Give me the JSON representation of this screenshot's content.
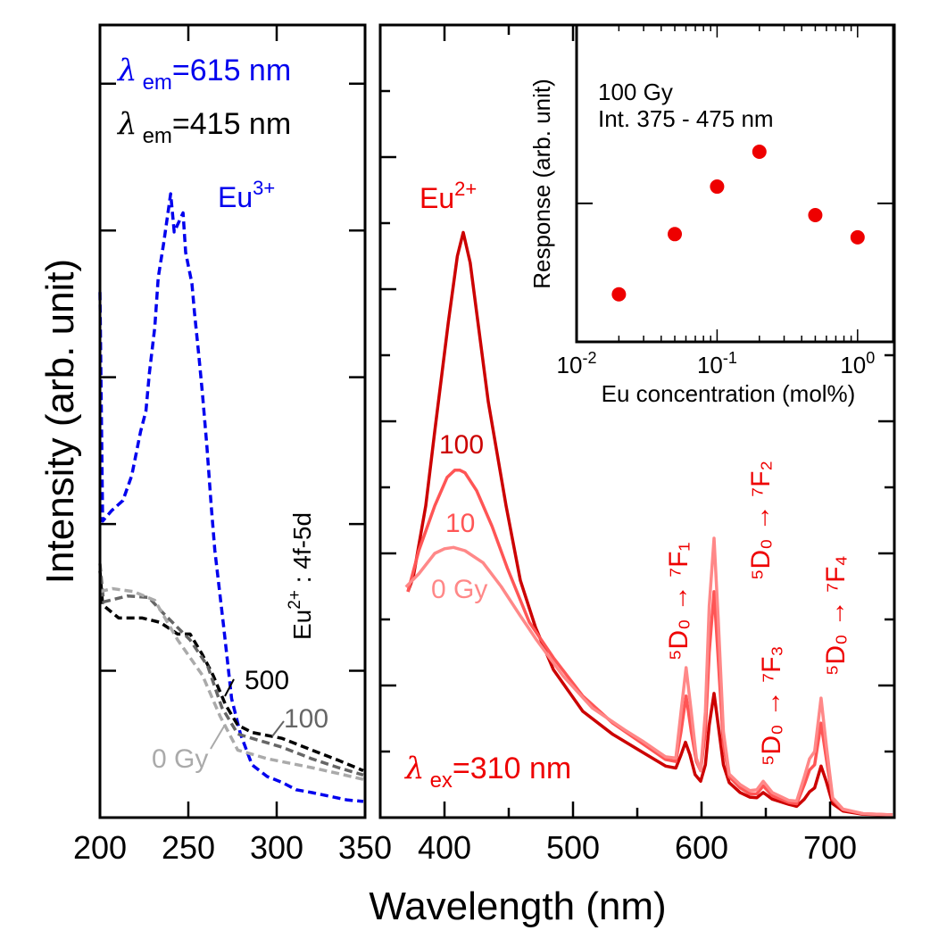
{
  "chart_data": [
    {
      "panel": "left",
      "type": "line",
      "title": "",
      "xlabel": "",
      "ylabel": "Intensity (arb. unit)",
      "xlim": [
        200,
        350
      ],
      "ylim": [
        0,
        5.4
      ],
      "x_ticks": [
        200,
        250,
        300,
        350
      ],
      "y_ticks": [
        1,
        2,
        3,
        4,
        5
      ],
      "y_tick_labels_visible": false,
      "grid": false,
      "annotations": {
        "em615": {
          "prefix": "λ",
          "sub": "em",
          "rest": "=615 nm",
          "color": "#0000ee"
        },
        "em415": {
          "prefix": "λ",
          "sub": "em",
          "rest": "=415 nm",
          "color": "#000000"
        },
        "eu3": {
          "base": "Eu",
          "sup": "3+",
          "color": "#0000ee"
        },
        "eu2_transition": {
          "base": "Eu",
          "sup": "2+",
          "rest": " : 4f-5d",
          "color": "#000000"
        },
        "label_500": {
          "text": "500",
          "color": "#000000"
        },
        "label_100": {
          "text": "100",
          "color": "#666666"
        },
        "label_0gy": {
          "text": "0 Gy",
          "color": "#aaaaaa"
        }
      },
      "series": [
        {
          "name": "Eu3+ excitation (λem=615 nm)",
          "color": "#0000ee",
          "dash": true,
          "x": [
            200,
            201.5,
            206.5,
            213,
            218,
            223,
            226,
            228,
            231,
            233,
            236,
            240,
            242,
            247,
            248.5,
            252,
            253.5,
            256,
            258,
            260.5,
            263,
            265,
            270,
            274.5,
            279.5,
            286,
            294.6,
            303,
            311,
            320,
            328,
            340,
            349
          ],
          "y": [
            3.58,
            2.02,
            2.09,
            2.16,
            2.33,
            2.63,
            2.77,
            3.03,
            3.34,
            3.68,
            3.91,
            4.25,
            3.99,
            4.12,
            3.85,
            3.64,
            3.44,
            3.14,
            2.89,
            2.53,
            2.12,
            1.82,
            1.3,
            0.81,
            0.57,
            0.36,
            0.28,
            0.24,
            0.19,
            0.17,
            0.15,
            0.12,
            0.11
          ]
        },
        {
          "name": "500 Gy (λem=415 nm)",
          "color": "#000000",
          "dash": true,
          "x": [
            200,
            201.5,
            210.6,
            224,
            234,
            244,
            251,
            258,
            264,
            271,
            278,
            286,
            303,
            320,
            335,
            349
          ],
          "y": [
            1.68,
            1.45,
            1.36,
            1.36,
            1.33,
            1.25,
            1.25,
            1.11,
            0.97,
            0.77,
            0.63,
            0.58,
            0.54,
            0.46,
            0.39,
            0.32
          ]
        },
        {
          "name": "100 Gy (λem=415 nm)",
          "color": "#666666",
          "dash": true,
          "x": [
            200,
            202,
            215.6,
            227.6,
            236,
            251,
            261,
            269,
            278,
            286,
            303,
            320,
            335,
            349
          ],
          "y": [
            1.73,
            1.47,
            1.51,
            1.5,
            1.39,
            1.21,
            1.03,
            0.75,
            0.57,
            0.54,
            0.48,
            0.4,
            0.34,
            0.29
          ]
        },
        {
          "name": "0 Gy (λem=415 nm)",
          "color": "#aaaaaa",
          "dash": true,
          "x": [
            200,
            207,
            219,
            231,
            244,
            258,
            268,
            278,
            295,
            320,
            335,
            349
          ],
          "y": [
            1.54,
            1.56,
            1.54,
            1.48,
            1.21,
            0.97,
            0.69,
            0.46,
            0.4,
            0.34,
            0.3,
            0.26
          ]
        }
      ]
    },
    {
      "panel": "right",
      "type": "line",
      "title": "",
      "xlabel": "Wavelength (nm)",
      "ylabel": "",
      "xlim": [
        350,
        750
      ],
      "ylim": [
        0,
        12
      ],
      "x_ticks": [
        400,
        500,
        600,
        700
      ],
      "x_minor_ticks": [
        450,
        550,
        650
      ],
      "y_ticks": [
        1,
        2,
        3,
        4,
        5,
        6,
        7,
        8,
        9,
        10,
        11
      ],
      "y_tick_labels_visible": false,
      "grid": false,
      "annotations": {
        "eu2": {
          "base": "Eu",
          "sup": "2+",
          "color": "#ee0000"
        },
        "label_100": {
          "text": "100",
          "color": "#cc0000"
        },
        "label_10": {
          "text": "10",
          "color": "#ff5555"
        },
        "label_0gy": {
          "text": "0 Gy",
          "color": "#ff8888"
        },
        "ex310": {
          "prefix": "λ",
          "sub": "ex",
          "rest": "=310 nm",
          "color": "#ee0000"
        },
        "transitions": [
          {
            "name": "5D0-7F1",
            "text": "⁵D₀ → ⁷F₁",
            "color": "#ee0000"
          },
          {
            "name": "5D0-7F2",
            "text": "⁵D₀ → ⁷F₂",
            "color": "#ee0000"
          },
          {
            "name": "5D0-7F3",
            "text": "⁵D₀ → ⁷F₃",
            "color": "#ee0000"
          },
          {
            "name": "5D0-7F4",
            "text": "⁵D₀ → ⁷F₄",
            "color": "#ee0000"
          }
        ]
      },
      "series": [
        {
          "name": "100 Gy",
          "color": "#cc0000",
          "x": [
            371.5,
            375.7,
            385.4,
            392.4,
            403,
            410,
            414.6,
            420,
            434,
            447.9,
            459,
            470.8,
            484.7,
            507.6,
            531,
            554,
            572,
            580,
            584,
            587.5,
            591,
            595,
            599.3,
            603,
            606,
            609.7,
            613,
            617,
            621.5,
            630,
            637.5,
            643,
            648,
            655,
            668,
            674,
            680,
            684,
            688,
            693,
            697,
            702,
            710,
            725.7,
            748.6
          ],
          "y": [
            3.42,
            3.64,
            4.72,
            5.85,
            7.5,
            8.5,
            8.86,
            8.4,
            6.3,
            4.72,
            3.59,
            2.88,
            2.24,
            1.61,
            1.26,
            0.99,
            0.78,
            0.75,
            0.95,
            1.14,
            0.95,
            0.65,
            0.55,
            0.8,
            1.4,
            1.88,
            1.4,
            0.8,
            0.53,
            0.38,
            0.31,
            0.3,
            0.38,
            0.28,
            0.2,
            0.17,
            0.28,
            0.39,
            0.45,
            0.78,
            0.55,
            0.21,
            0.1,
            0.05,
            0.04
          ]
        },
        {
          "name": "10 Gy",
          "color": "#ff5555",
          "x": [
            371.5,
            380,
            392.4,
            402,
            408,
            412,
            416,
            425,
            437,
            449,
            466,
            484.7,
            507.6,
            531,
            554,
            572,
            580,
            584,
            588,
            592,
            596,
            599.3,
            603,
            606,
            609.7,
            613,
            617,
            621.5,
            630,
            637.5,
            643,
            648,
            655,
            668,
            674,
            680,
            684,
            688,
            693,
            697,
            702,
            710,
            725.7,
            748.6
          ],
          "y": [
            3.42,
            4.04,
            4.72,
            5.15,
            5.26,
            5.26,
            5.22,
            4.95,
            4.41,
            3.77,
            2.96,
            2.42,
            1.84,
            1.43,
            1.12,
            0.88,
            0.85,
            1.3,
            1.84,
            1.3,
            0.85,
            0.71,
            1.3,
            2.5,
            3.42,
            2.4,
            1.1,
            0.62,
            0.45,
            0.36,
            0.36,
            0.48,
            0.33,
            0.23,
            0.21,
            0.5,
            0.72,
            0.8,
            1.43,
            0.9,
            0.27,
            0.12,
            0.06,
            0.04
          ]
        },
        {
          "name": "0 Gy",
          "color": "#ff8888",
          "x": [
            370,
            380,
            392.4,
            400,
            407,
            416,
            430,
            444,
            457.8,
            471.6,
            492,
            515,
            540,
            554,
            572,
            580,
            584,
            588,
            592,
            596,
            599.3,
            603,
            606,
            609.7,
            613,
            617,
            621.5,
            630,
            637.5,
            643,
            648,
            655,
            668,
            674,
            680,
            684,
            688,
            693,
            697,
            702,
            710,
            725.7,
            748.6
          ],
          "y": [
            3.49,
            3.69,
            4.0,
            4.07,
            4.09,
            4.04,
            3.86,
            3.5,
            3.09,
            2.69,
            2.15,
            1.66,
            1.33,
            1.16,
            0.92,
            0.9,
            1.6,
            2.27,
            1.6,
            0.9,
            0.71,
            1.6,
            3.2,
            4.23,
            3.0,
            1.3,
            0.66,
            0.5,
            0.41,
            0.42,
            0.55,
            0.38,
            0.26,
            0.25,
            0.62,
            0.89,
            1.0,
            1.81,
            1.1,
            0.3,
            0.13,
            0.06,
            0.04
          ]
        }
      ]
    },
    {
      "panel": "inset",
      "type": "scatter",
      "title": "",
      "xlabel": "Eu concentration (mol%)",
      "ylabel": "Response (arb. unit)",
      "xscale": "log",
      "xlim": [
        0.01,
        1.8
      ],
      "ylim": [
        0,
        1
      ],
      "x_ticks": [
        0.01,
        0.1,
        1
      ],
      "x_tick_labels": [
        {
          "base": "10",
          "exp": "-2"
        },
        {
          "base": "10",
          "exp": "-1"
        },
        {
          "base": "10",
          "exp": "0"
        }
      ],
      "y_ticks": [
        0.437
      ],
      "y_tick_labels_visible": false,
      "grid": false,
      "annotation_lines": [
        "100 Gy",
        "Int. 375 - 475 nm"
      ],
      "marker_color": "#ee0000",
      "x": [
        0.02,
        0.05,
        0.1,
        0.2,
        0.5,
        1.0
      ],
      "y": [
        0.15,
        0.34,
        0.49,
        0.6,
        0.4,
        0.33
      ]
    }
  ]
}
